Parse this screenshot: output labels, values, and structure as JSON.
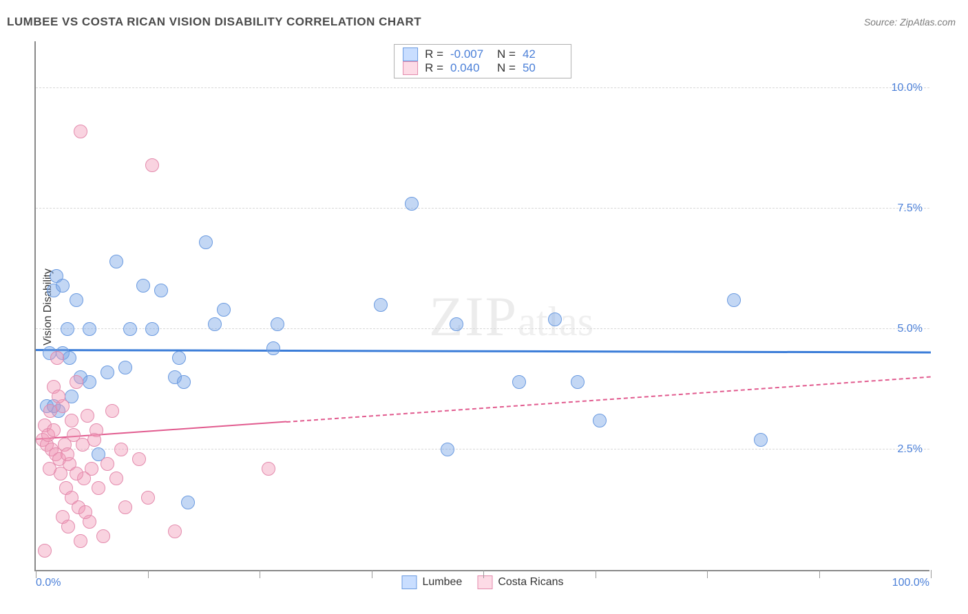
{
  "title": "LUMBEE VS COSTA RICAN VISION DISABILITY CORRELATION CHART",
  "source": "Source: ZipAtlas.com",
  "ylabel": "Vision Disability",
  "watermark_a": "ZIP",
  "watermark_b": "atlas",
  "chart": {
    "type": "scatter",
    "xlim": [
      0,
      100
    ],
    "ylim": [
      0,
      11
    ],
    "xticks": [
      0,
      12.5,
      25,
      37.5,
      50,
      62.5,
      75,
      87.5,
      100
    ],
    "ygrid": [
      {
        "v": 2.5,
        "label": "2.5%"
      },
      {
        "v": 5.0,
        "label": "5.0%"
      },
      {
        "v": 7.5,
        "label": "7.5%"
      },
      {
        "v": 10.0,
        "label": "10.0%"
      }
    ],
    "x_left_label": "0.0%",
    "x_right_label": "100.0%",
    "background_color": "#ffffff",
    "axis_color": "#888888",
    "grid_color": "#d8d8d8",
    "tick_label_color": "#4a7fd8",
    "label_fontsize": 16,
    "title_fontsize": 17,
    "marker_radius": 10,
    "series": [
      {
        "name": "Lumbee",
        "fill": "rgba(121,167,230,0.45)",
        "stroke": "#6a9ae0",
        "legend_fill": "#c9deff",
        "legend_stroke": "#6a9ae0",
        "R": "-0.007",
        "N": "42",
        "trend": {
          "y1": 4.55,
          "y2": 4.5,
          "color": "#3a7cd8",
          "width": 3,
          "solid_until_x": 100,
          "dash": "0"
        },
        "points": [
          [
            1.2,
            3.4
          ],
          [
            2.0,
            5.8
          ],
          [
            2.3,
            6.1
          ],
          [
            2.5,
            3.3
          ],
          [
            3.0,
            5.9
          ],
          [
            3.0,
            4.5
          ],
          [
            3.5,
            5.0
          ],
          [
            3.8,
            4.4
          ],
          [
            4.0,
            3.6
          ],
          [
            5.0,
            4.0
          ],
          [
            6.0,
            5.0
          ],
          [
            7.0,
            2.4
          ],
          [
            8.0,
            4.1
          ],
          [
            9.0,
            6.4
          ],
          [
            10.0,
            4.2
          ],
          [
            10.5,
            5.0
          ],
          [
            12.0,
            5.9
          ],
          [
            13.0,
            5.0
          ],
          [
            14.0,
            5.8
          ],
          [
            15.5,
            4.0
          ],
          [
            16.0,
            4.4
          ],
          [
            16.5,
            3.9
          ],
          [
            17.0,
            1.4
          ],
          [
            19.0,
            6.8
          ],
          [
            20.0,
            5.1
          ],
          [
            21.0,
            5.4
          ],
          [
            26.5,
            4.6
          ],
          [
            27.0,
            5.1
          ],
          [
            42.0,
            7.6
          ],
          [
            38.5,
            5.5
          ],
          [
            46.0,
            2.5
          ],
          [
            47.0,
            5.1
          ],
          [
            54.0,
            3.9
          ],
          [
            58.0,
            5.2
          ],
          [
            60.5,
            3.9
          ],
          [
            63.0,
            3.1
          ],
          [
            78.0,
            5.6
          ],
          [
            81.0,
            2.7
          ],
          [
            1.5,
            4.5
          ],
          [
            2.0,
            3.4
          ],
          [
            4.5,
            5.6
          ],
          [
            6.0,
            3.9
          ]
        ]
      },
      {
        "name": "Costa Ricans",
        "fill": "rgba(240,150,180,0.42)",
        "stroke": "#e38aac",
        "legend_fill": "#fddbe6",
        "legend_stroke": "#e38aac",
        "R": "0.040",
        "N": "50",
        "trend": {
          "y1": 2.7,
          "y2": 4.0,
          "color": "#e15a8e",
          "width": 2.5,
          "solid_until_x": 28,
          "dash": "6,6"
        },
        "points": [
          [
            0.8,
            2.7
          ],
          [
            1.0,
            3.0
          ],
          [
            1.2,
            2.6
          ],
          [
            1.4,
            2.8
          ],
          [
            1.6,
            3.3
          ],
          [
            1.8,
            2.5
          ],
          [
            2.0,
            3.8
          ],
          [
            2.2,
            2.4
          ],
          [
            2.4,
            4.4
          ],
          [
            2.6,
            2.3
          ],
          [
            2.8,
            2.0
          ],
          [
            3.0,
            3.4
          ],
          [
            3.0,
            1.1
          ],
          [
            3.2,
            2.6
          ],
          [
            3.4,
            1.7
          ],
          [
            3.6,
            0.9
          ],
          [
            3.8,
            2.2
          ],
          [
            4.0,
            1.5
          ],
          [
            4.2,
            2.8
          ],
          [
            4.5,
            3.9
          ],
          [
            4.8,
            1.3
          ],
          [
            5.0,
            0.6
          ],
          [
            5.0,
            9.1
          ],
          [
            5.2,
            2.6
          ],
          [
            5.4,
            1.9
          ],
          [
            5.8,
            3.2
          ],
          [
            6.0,
            1.0
          ],
          [
            6.2,
            2.1
          ],
          [
            6.8,
            2.9
          ],
          [
            7.0,
            1.7
          ],
          [
            7.5,
            0.7
          ],
          [
            8.0,
            2.2
          ],
          [
            8.5,
            3.3
          ],
          [
            9.0,
            1.9
          ],
          [
            10.0,
            1.3
          ],
          [
            11.5,
            2.3
          ],
          [
            12.5,
            1.5
          ],
          [
            13.0,
            8.4
          ],
          [
            15.5,
            0.8
          ],
          [
            26.0,
            2.1
          ],
          [
            1.0,
            0.4
          ],
          [
            1.5,
            2.1
          ],
          [
            2.0,
            2.9
          ],
          [
            2.5,
            3.6
          ],
          [
            3.5,
            2.4
          ],
          [
            4.0,
            3.1
          ],
          [
            4.5,
            2.0
          ],
          [
            5.5,
            1.2
          ],
          [
            6.5,
            2.7
          ],
          [
            9.5,
            2.5
          ]
        ]
      }
    ]
  },
  "legend_top_labels": {
    "R": "R =",
    "N": "N ="
  },
  "legend_bottom": [
    "Lumbee",
    "Costa Ricans"
  ]
}
